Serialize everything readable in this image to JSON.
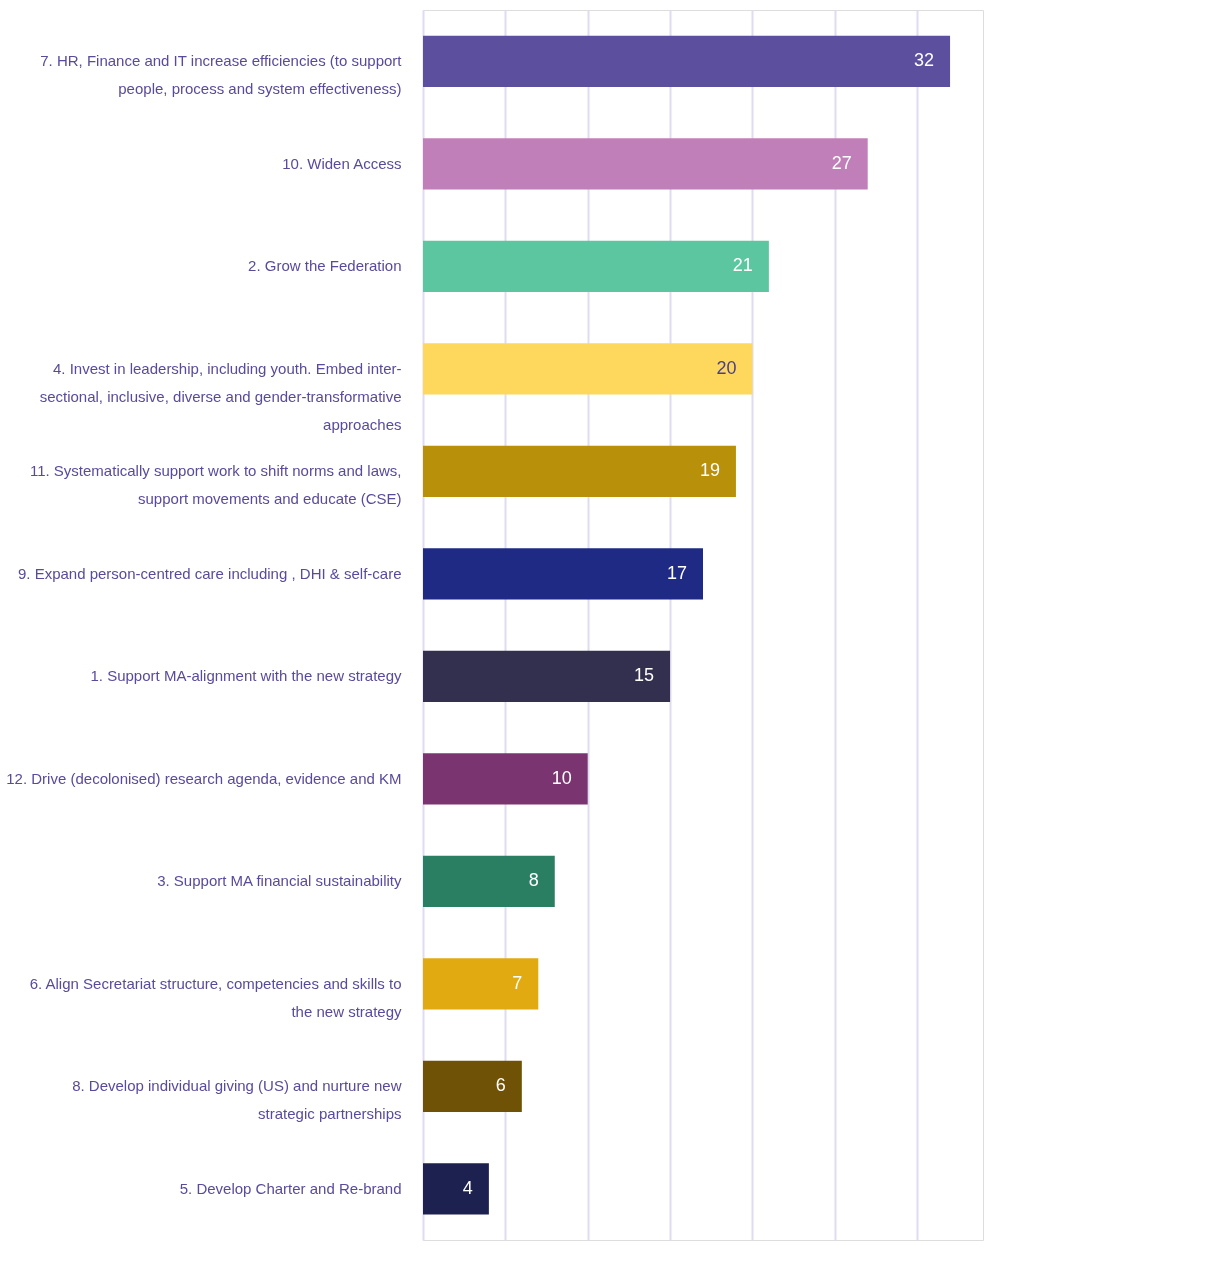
{
  "chart_data": {
    "type": "bar",
    "orientation": "horizontal",
    "categories": [
      "7. HR, Finance and IT increase efficiencies (to support people, process and system effectiveness)",
      "10. Widen Access",
      "2. Grow the Federation",
      "4. Invest in leadership, including youth. Embed inter-sectional, inclusive, diverse and gender-transformative approaches",
      "11. Systematically support work to shift norms and laws, support movements and educate (CSE)",
      "9. Expand person-centred care including , DHI & self-care",
      "1. Support MA-alignment with the new strategy",
      "12. Drive (decolonised) research agenda, evidence and KM",
      "3. Support MA financial sustainability",
      "6. Align Secretariat structure, competencies and skills to the new strategy",
      "8. Develop individual giving (US) and nurture new strategic partnerships",
      "5. Develop Charter and Re-brand"
    ],
    "values": [
      32,
      27,
      21,
      20,
      19,
      17,
      15,
      10,
      8,
      7,
      6,
      4
    ],
    "colors": [
      "#5b4f9e",
      "#c07fb8",
      "#5cc6a0",
      "#fdd85d",
      "#b8900a",
      "#1f2a85",
      "#33304f",
      "#7a3570",
      "#2a7f63",
      "#e0aa10",
      "#6f5205",
      "#1c2150"
    ],
    "data_labels": true,
    "xlim": [
      0,
      34
    ],
    "xticks": [
      {
        "value": 0,
        "label": null
      },
      {
        "value": 5,
        "label": null
      },
      {
        "value": 10,
        "label": null
      },
      {
        "value": 15,
        "label": null
      },
      {
        "value": 20,
        "label": null
      },
      {
        "value": 25,
        "label": null
      },
      {
        "value": 30,
        "label": null
      }
    ],
    "grid": "x",
    "tick_labels": "y"
  }
}
